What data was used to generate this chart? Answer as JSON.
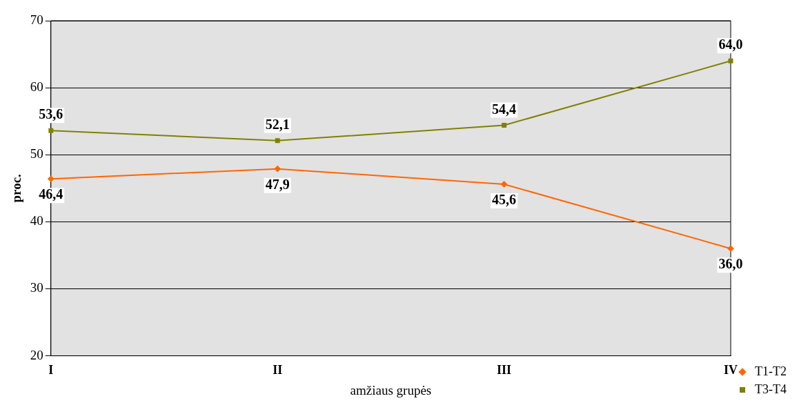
{
  "chart_data": {
    "type": "line",
    "xlabel": "amžiaus grupės",
    "ylabel": "proc.",
    "categories": [
      "I",
      "II",
      "III",
      "IV"
    ],
    "series": [
      {
        "name": "T1-T2",
        "color": "#ff6600",
        "marker": "diamond",
        "values": [
          46.4,
          47.9,
          45.6,
          36.0
        ],
        "value_labels": [
          "46,4",
          "47,9",
          "45,6",
          "36,0"
        ]
      },
      {
        "name": "T3-T4",
        "color": "#808000",
        "marker": "square",
        "values": [
          53.6,
          52.1,
          54.4,
          64.0
        ],
        "value_labels": [
          "53,6",
          "52,1",
          "54,4",
          "64,0"
        ]
      }
    ],
    "ylim": [
      20,
      70
    ],
    "yticks": [
      20,
      30,
      40,
      50,
      60,
      70
    ],
    "grid": "y",
    "legend": "bottom right",
    "line_style": "solid"
  }
}
